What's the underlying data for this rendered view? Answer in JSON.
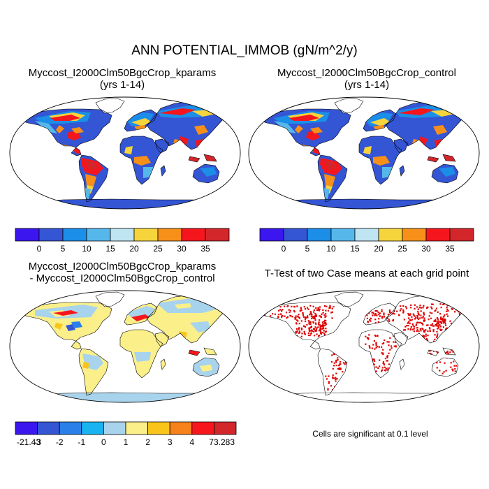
{
  "main_title": "ANN POTENTIAL_IMMOB (gN/m^2/y)",
  "panels": [
    {
      "id": "p1",
      "title_line1": "Myccost_I2000Clm50BgcCrop_kparams",
      "title_line2": "(yrs 1-14)"
    },
    {
      "id": "p2",
      "title_line1": "Myccost_I2000Clm50BgcCrop_control",
      "title_line2": "(yrs 1-14)"
    },
    {
      "id": "p3",
      "title_line1": "Myccost_I2000Clm50BgcCrop_kparams",
      "title_line2": "- Myccost_I2000Clm50BgcCrop_control"
    },
    {
      "id": "p4",
      "title_line1": "T-Test of two Case means at each grid point",
      "title_line2": ""
    }
  ],
  "significance_note": "Cells are significant at 0.1 level",
  "chart_data": [
    {
      "type": "heatmap",
      "title": "Myccost_I2000Clm50BgcCrop_kparams (yrs 1-14)",
      "projection": "Robinson global map",
      "colorbar_labels": [
        "0",
        "5",
        "10",
        "15",
        "20",
        "25",
        "30",
        "35"
      ],
      "colorbar_colors": [
        "#3c16ee",
        "#3455d4",
        "#1b8ee8",
        "#56b8ea",
        "#bfe4f2",
        "#f6d43c",
        "#f79019",
        "#f5161d",
        "#d3262b"
      ]
    },
    {
      "type": "heatmap",
      "title": "Myccost_I2000Clm50BgcCrop_control (yrs 1-14)",
      "projection": "Robinson global map",
      "colorbar_labels": [
        "0",
        "5",
        "10",
        "15",
        "20",
        "25",
        "30",
        "35"
      ],
      "colorbar_colors": [
        "#3c16ee",
        "#3455d4",
        "#1b8ee8",
        "#56b8ea",
        "#bfe4f2",
        "#f6d43c",
        "#f79019",
        "#f5161d",
        "#d3262b"
      ]
    },
    {
      "type": "heatmap",
      "title": "Myccost_I2000Clm50BgcCrop_kparams - Myccost_I2000Clm50BgcCrop_control",
      "projection": "Robinson global map",
      "colorbar_labels": [
        "-21.43",
        "-3",
        "-2",
        "-1",
        "0",
        "1",
        "2",
        "3",
        "4",
        "73.283"
      ],
      "colorbar_colors": [
        "#3c16ee",
        "#3455d4",
        "#2a80e8",
        "#18b4f0",
        "#a8d3ec",
        "#fbef8a",
        "#f9c51a",
        "#f7811a",
        "#f7161b",
        "#d3262b"
      ]
    },
    {
      "type": "heatmap",
      "title": "T-Test of two Case means at each grid point",
      "projection": "Robinson global map",
      "significant_color": "#e00000"
    }
  ]
}
